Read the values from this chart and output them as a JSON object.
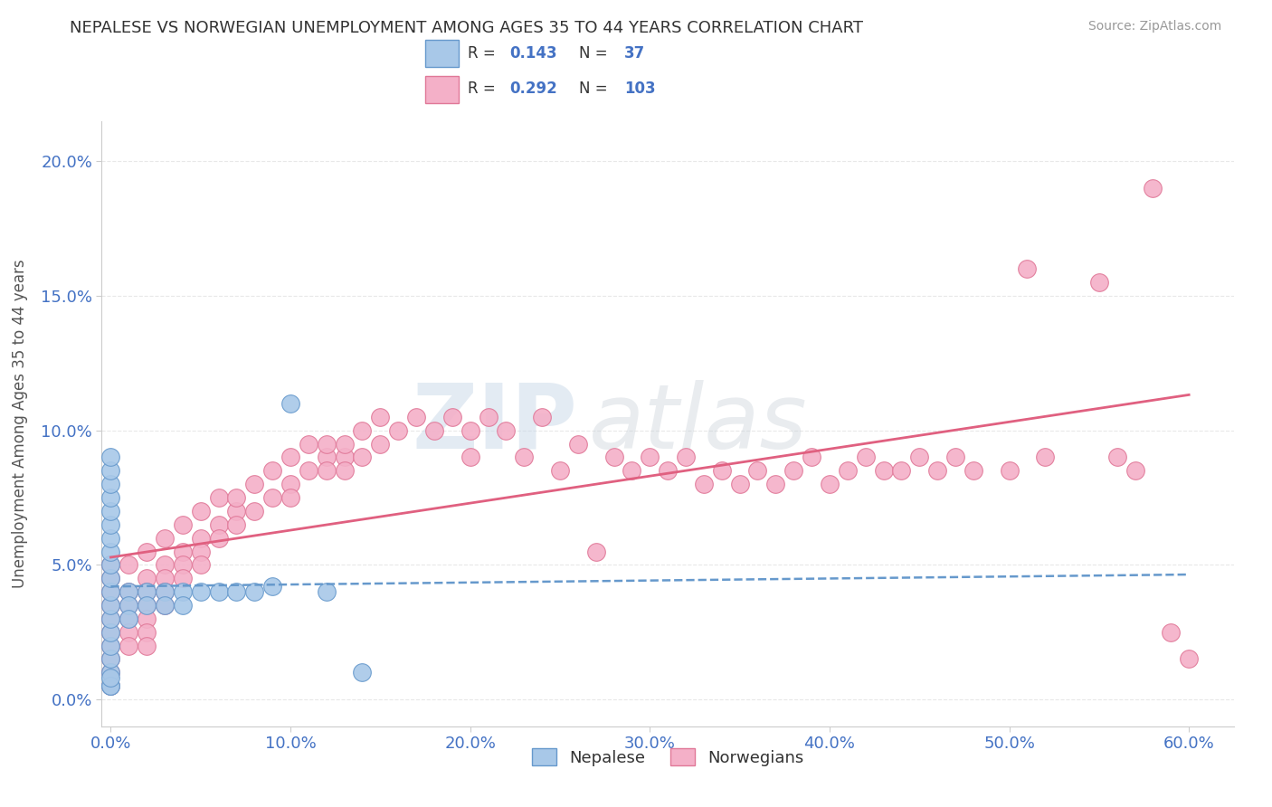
{
  "title": "NEPALESE VS NORWEGIAN UNEMPLOYMENT AMONG AGES 35 TO 44 YEARS CORRELATION CHART",
  "source": "Source: ZipAtlas.com",
  "xlabel_ticks": [
    "0.0%",
    "10.0%",
    "20.0%",
    "30.0%",
    "40.0%",
    "50.0%",
    "60.0%"
  ],
  "ylabel_ticks": [
    "0.0%",
    "5.0%",
    "10.0%",
    "15.0%",
    "20.0%"
  ],
  "xlim": [
    -0.005,
    0.625
  ],
  "ylim": [
    -0.01,
    0.215
  ],
  "legend_bottom": [
    "Nepalese",
    "Norwegians"
  ],
  "watermark_zip": "ZIP",
  "watermark_atlas": "atlas",
  "nepalese_color": "#a8c8e8",
  "nepalese_edge": "#6699cc",
  "norwegians_color": "#f4b0c8",
  "norwegians_edge": "#e07898",
  "trend_nepalese_color": "#6699cc",
  "trend_norwegians_color": "#e06080",
  "background_color": "#ffffff",
  "grid_color": "#e8e8e8",
  "nepalese_x": [
    0.0,
    0.0,
    0.0,
    0.0,
    0.0,
    0.0,
    0.0,
    0.0,
    0.0,
    0.0,
    0.0,
    0.0,
    0.0,
    0.0,
    0.0,
    0.0,
    0.0,
    0.0,
    0.0,
    0.0,
    0.01,
    0.01,
    0.01,
    0.02,
    0.02,
    0.03,
    0.03,
    0.04,
    0.04,
    0.05,
    0.06,
    0.07,
    0.08,
    0.09,
    0.1,
    0.12,
    0.14
  ],
  "nepalese_y": [
    0.005,
    0.01,
    0.015,
    0.02,
    0.025,
    0.03,
    0.035,
    0.04,
    0.045,
    0.05,
    0.055,
    0.06,
    0.065,
    0.07,
    0.075,
    0.08,
    0.085,
    0.09,
    0.005,
    0.008,
    0.04,
    0.035,
    0.03,
    0.04,
    0.035,
    0.04,
    0.035,
    0.04,
    0.035,
    0.04,
    0.04,
    0.04,
    0.04,
    0.042,
    0.11,
    0.04,
    0.01
  ],
  "norwegians_x": [
    0.0,
    0.0,
    0.0,
    0.0,
    0.0,
    0.0,
    0.0,
    0.0,
    0.0,
    0.0,
    0.01,
    0.01,
    0.01,
    0.01,
    0.01,
    0.01,
    0.02,
    0.02,
    0.02,
    0.02,
    0.02,
    0.02,
    0.02,
    0.03,
    0.03,
    0.03,
    0.03,
    0.03,
    0.04,
    0.04,
    0.04,
    0.04,
    0.05,
    0.05,
    0.05,
    0.05,
    0.06,
    0.06,
    0.06,
    0.07,
    0.07,
    0.07,
    0.08,
    0.08,
    0.09,
    0.09,
    0.1,
    0.1,
    0.1,
    0.11,
    0.11,
    0.12,
    0.12,
    0.12,
    0.13,
    0.13,
    0.13,
    0.14,
    0.14,
    0.15,
    0.15,
    0.16,
    0.17,
    0.18,
    0.19,
    0.2,
    0.2,
    0.21,
    0.22,
    0.23,
    0.24,
    0.25,
    0.26,
    0.27,
    0.28,
    0.29,
    0.3,
    0.31,
    0.32,
    0.33,
    0.34,
    0.35,
    0.36,
    0.37,
    0.38,
    0.39,
    0.4,
    0.41,
    0.42,
    0.43,
    0.44,
    0.45,
    0.46,
    0.47,
    0.48,
    0.5,
    0.51,
    0.52,
    0.55,
    0.56,
    0.57,
    0.58,
    0.59,
    0.6
  ],
  "norwegians_y": [
    0.04,
    0.035,
    0.03,
    0.025,
    0.02,
    0.015,
    0.01,
    0.005,
    0.045,
    0.05,
    0.04,
    0.035,
    0.03,
    0.025,
    0.02,
    0.05,
    0.045,
    0.04,
    0.035,
    0.03,
    0.025,
    0.02,
    0.055,
    0.05,
    0.045,
    0.04,
    0.035,
    0.06,
    0.055,
    0.05,
    0.045,
    0.065,
    0.06,
    0.055,
    0.05,
    0.07,
    0.065,
    0.06,
    0.075,
    0.07,
    0.065,
    0.075,
    0.07,
    0.08,
    0.075,
    0.085,
    0.08,
    0.075,
    0.09,
    0.085,
    0.095,
    0.09,
    0.085,
    0.095,
    0.09,
    0.085,
    0.095,
    0.09,
    0.1,
    0.095,
    0.105,
    0.1,
    0.105,
    0.1,
    0.105,
    0.1,
    0.09,
    0.105,
    0.1,
    0.09,
    0.105,
    0.085,
    0.095,
    0.055,
    0.09,
    0.085,
    0.09,
    0.085,
    0.09,
    0.08,
    0.085,
    0.08,
    0.085,
    0.08,
    0.085,
    0.09,
    0.08,
    0.085,
    0.09,
    0.085,
    0.085,
    0.09,
    0.085,
    0.09,
    0.085,
    0.085,
    0.16,
    0.09,
    0.155,
    0.09,
    0.085,
    0.19,
    0.025,
    0.015
  ]
}
